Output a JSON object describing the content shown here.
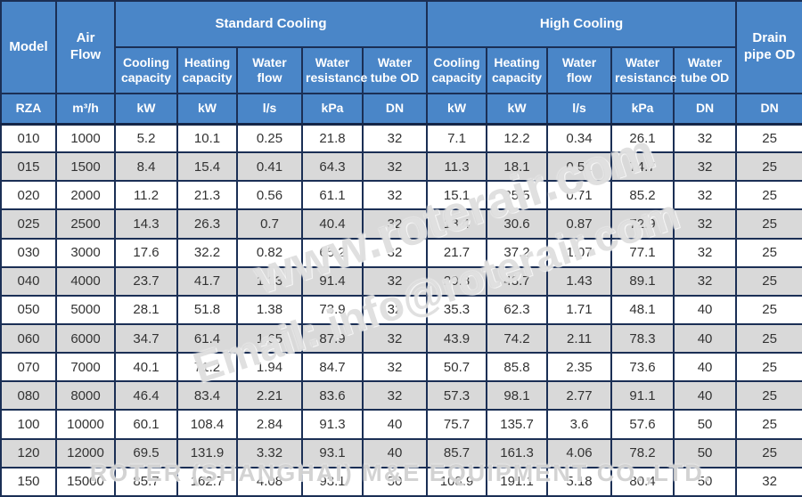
{
  "colors": {
    "header_bg": "#4a86c8",
    "header_border": "#1b2f55",
    "data_border": "#33343a",
    "row_alt_bg": "#d9d9d9",
    "row_bg": "#ffffff",
    "header_text": "#ffffff",
    "cell_text": "#333333",
    "watermark_gray": "#cdcdcd"
  },
  "header": {
    "model": "Model",
    "air_flow": "Air Flow",
    "standard_cooling": "Standard Cooling",
    "high_cooling": "High Cooling",
    "drain_pipe_od": "Drain pipe OD",
    "subheaders": [
      "Cooling capacity",
      "Heating capacity",
      "Water flow",
      "Water resistance",
      "Water tube OD"
    ]
  },
  "units": {
    "model": "RZA",
    "air_flow": "m³/h",
    "standard": [
      "kW",
      "kW",
      "l/s",
      "kPa",
      "DN"
    ],
    "high": [
      "kW",
      "kW",
      "l/s",
      "kPa",
      "DN"
    ],
    "drain": "DN"
  },
  "rows": [
    {
      "model": "010",
      "air_flow": "1000",
      "standard": [
        "5.2",
        "10.1",
        "0.25",
        "21.8",
        "32"
      ],
      "high": [
        "7.1",
        "12.2",
        "0.34",
        "26.1",
        "32"
      ],
      "drain": "25"
    },
    {
      "model": "015",
      "air_flow": "1500",
      "standard": [
        "8.4",
        "15.4",
        "0.41",
        "64.3",
        "32"
      ],
      "high": [
        "11.3",
        "18.1",
        "0.51",
        "74.7",
        "32"
      ],
      "drain": "25"
    },
    {
      "model": "020",
      "air_flow": "2000",
      "standard": [
        "11.2",
        "21.3",
        "0.56",
        "61.1",
        "32"
      ],
      "high": [
        "15.1",
        "25.5",
        "0.71",
        "85.2",
        "32"
      ],
      "drain": "25"
    },
    {
      "model": "025",
      "air_flow": "2500",
      "standard": [
        "14.3",
        "26.3",
        "0.7",
        "40.4",
        "32"
      ],
      "high": [
        "18.4",
        "30.6",
        "0.87",
        "72.9",
        "32"
      ],
      "drain": "25"
    },
    {
      "model": "030",
      "air_flow": "3000",
      "standard": [
        "17.6",
        "32.2",
        "0.82",
        "65.2",
        "32"
      ],
      "high": [
        "21.7",
        "37.2",
        "1.07",
        "77.1",
        "32"
      ],
      "drain": "25"
    },
    {
      "model": "040",
      "air_flow": "4000",
      "standard": [
        "23.7",
        "41.7",
        "1.13",
        "91.4",
        "32"
      ],
      "high": [
        "29.8",
        "48.7",
        "1.43",
        "89.1",
        "32"
      ],
      "drain": "25"
    },
    {
      "model": "050",
      "air_flow": "5000",
      "standard": [
        "28.1",
        "51.8",
        "1.38",
        "73.9",
        "32"
      ],
      "high": [
        "35.3",
        "62.3",
        "1.71",
        "48.1",
        "40"
      ],
      "drain": "25"
    },
    {
      "model": "060",
      "air_flow": "6000",
      "standard": [
        "34.7",
        "61.4",
        "1.65",
        "87.9",
        "32"
      ],
      "high": [
        "43.9",
        "74.2",
        "2.11",
        "78.3",
        "40"
      ],
      "drain": "25"
    },
    {
      "model": "070",
      "air_flow": "7000",
      "standard": [
        "40.1",
        "71.2",
        "1.94",
        "84.7",
        "32"
      ],
      "high": [
        "50.7",
        "85.8",
        "2.35",
        "73.6",
        "40"
      ],
      "drain": "25"
    },
    {
      "model": "080",
      "air_flow": "8000",
      "standard": [
        "46.4",
        "83.4",
        "2.21",
        "83.6",
        "32"
      ],
      "high": [
        "57.3",
        "98.1",
        "2.77",
        "91.1",
        "40"
      ],
      "drain": "25"
    },
    {
      "model": "100",
      "air_flow": "10000",
      "standard": [
        "60.1",
        "108.4",
        "2.84",
        "91.3",
        "40"
      ],
      "high": [
        "75.7",
        "135.7",
        "3.6",
        "57.6",
        "50"
      ],
      "drain": "25"
    },
    {
      "model": "120",
      "air_flow": "12000",
      "standard": [
        "69.5",
        "131.9",
        "3.32",
        "93.1",
        "40"
      ],
      "high": [
        "85.7",
        "161.3",
        "4.06",
        "78.2",
        "50"
      ],
      "drain": "25"
    },
    {
      "model": "150",
      "air_flow": "15000",
      "standard": [
        "85.7",
        "162.7",
        "4.08",
        "93.1",
        "50"
      ],
      "high": [
        "108.9",
        "191.1",
        "5.18",
        "80.4",
        "50"
      ],
      "drain": "32"
    }
  ],
  "watermarks": {
    "line1": "www.roterair.com",
    "line2": "Email: info@roterair.com",
    "company": "ROTER (SHANGHAI) M&E EQUIPMENT CO.,LTD."
  }
}
